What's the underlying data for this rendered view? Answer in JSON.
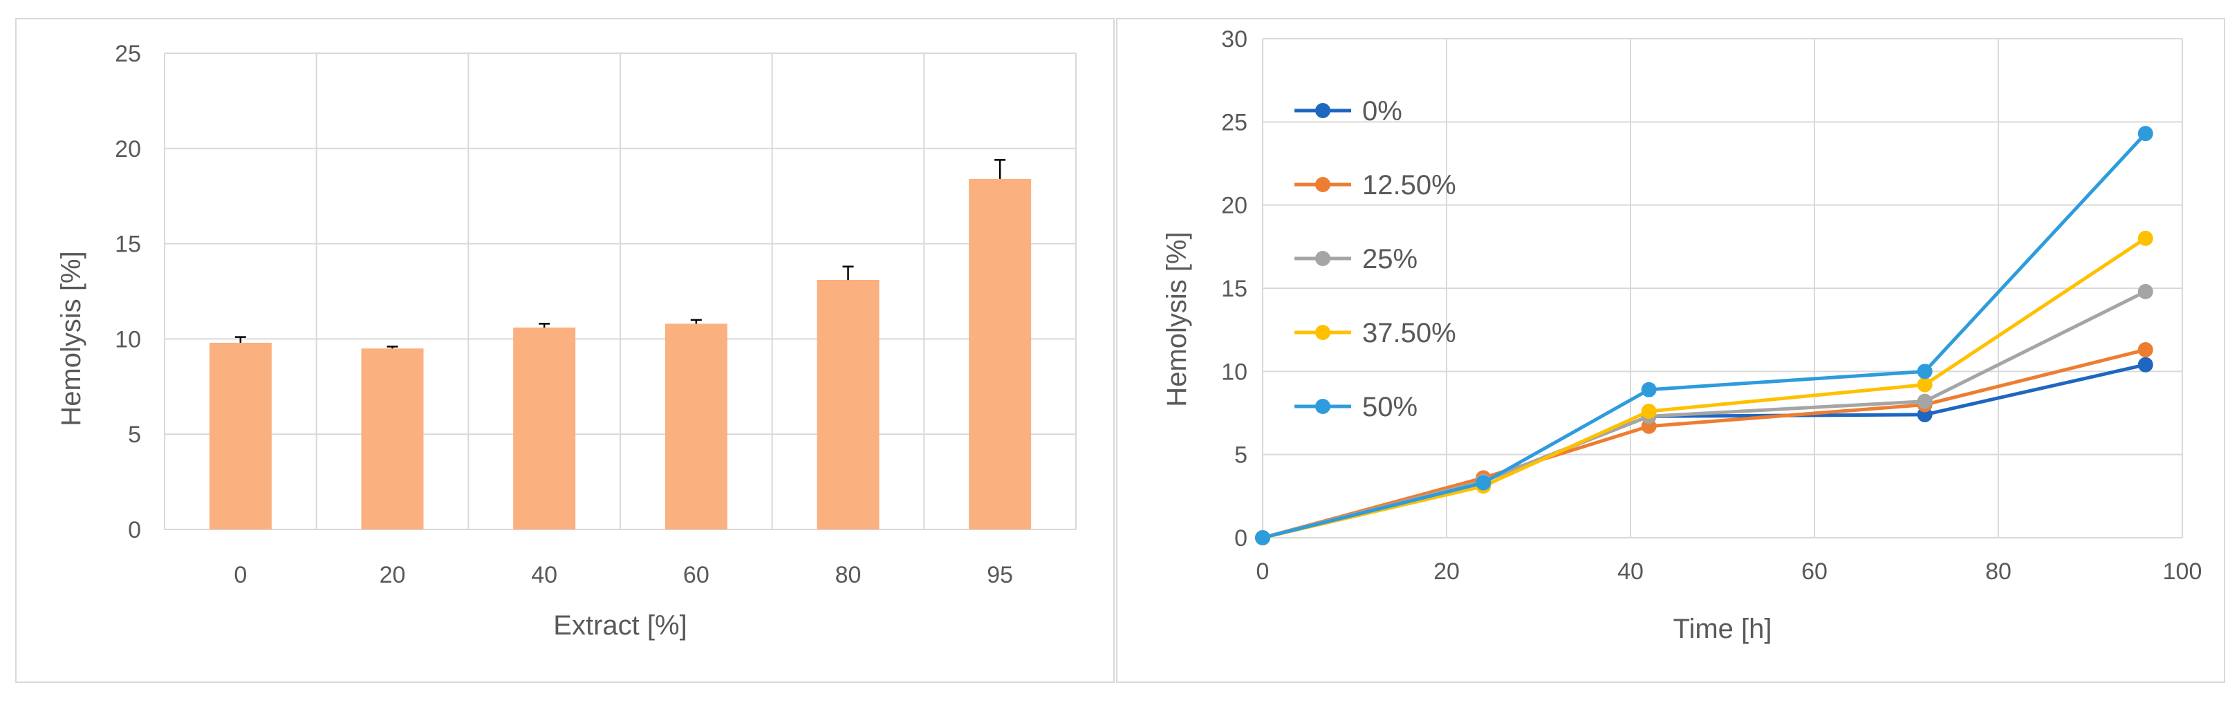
{
  "chart_data": [
    {
      "type": "bar",
      "title": "",
      "xlabel": "Extract [%]",
      "ylabel": "Hemolysis [%]",
      "categories": [
        "0",
        "20",
        "40",
        "60",
        "80",
        "95"
      ],
      "values": [
        9.8,
        9.5,
        10.6,
        10.8,
        13.1,
        18.4
      ],
      "error_bars": [
        0.3,
        0.1,
        0.2,
        0.2,
        0.7,
        1.0
      ],
      "ylim": [
        0,
        25
      ],
      "yticks": [
        "0",
        "5",
        "10",
        "15",
        "20",
        "25"
      ],
      "grid": true,
      "colors": {
        "bar": "#fbb080",
        "error": "#000000",
        "grid": "#d9d9d9"
      }
    },
    {
      "type": "line",
      "title": "",
      "xlabel": "Time [h]",
      "ylabel": "Hemolysis [%]",
      "x": [
        0,
        24,
        42,
        72,
        96
      ],
      "xlim": [
        0,
        100
      ],
      "ylim": [
        0,
        30
      ],
      "xticks": [
        "0",
        "20",
        "40",
        "60",
        "80",
        "100"
      ],
      "yticks": [
        "0",
        "5",
        "10",
        "15",
        "20",
        "25",
        "30"
      ],
      "grid": true,
      "legend_position": "top-left (inside)",
      "series": [
        {
          "name": "0%",
          "color": "#1f66c1",
          "values": [
            0,
            3.4,
            7.3,
            7.4,
            10.4
          ]
        },
        {
          "name": "12.50%",
          "color": "#ed7d31",
          "values": [
            0,
            3.6,
            6.7,
            8.0,
            11.3
          ]
        },
        {
          "name": "25%",
          "color": "#a5a5a5",
          "values": [
            0,
            3.4,
            7.3,
            8.2,
            14.8
          ]
        },
        {
          "name": "37.50%",
          "color": "#ffc000",
          "values": [
            0,
            3.1,
            7.6,
            9.2,
            18.0
          ]
        },
        {
          "name": "50%",
          "color": "#2e9cdc",
          "values": [
            0,
            3.3,
            8.9,
            10.0,
            24.3
          ]
        }
      ]
    }
  ]
}
